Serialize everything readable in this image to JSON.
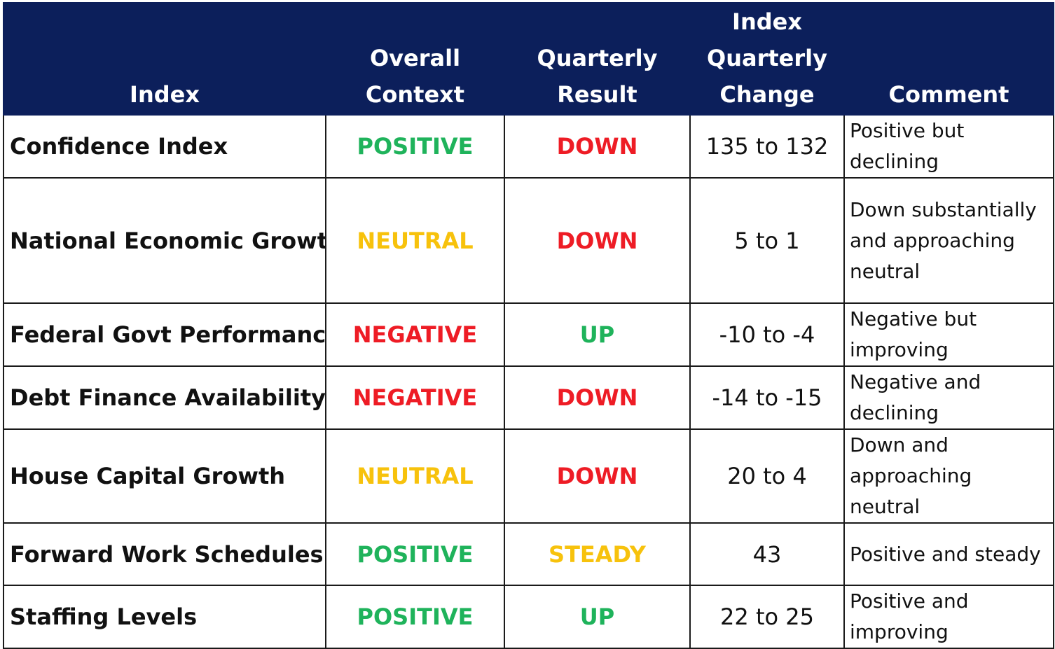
{
  "colors": {
    "header_background": "#0c1f5b",
    "header_text": "#ffffff",
    "positive": "#1fb35b",
    "neutral": "#f7c20c",
    "negative": "#ee1c25",
    "up": "#1fb35b",
    "down": "#ee1c25",
    "steady": "#f7c20c"
  },
  "table": {
    "headers": {
      "index": [
        "Index"
      ],
      "overall_context": [
        "Overall",
        "Context"
      ],
      "quarterly_result": [
        "Quarterly",
        "Result"
      ],
      "index_quarterly_change": [
        "Index",
        "Quarterly",
        "Change"
      ],
      "comment": [
        "Comment"
      ]
    },
    "rows": [
      {
        "index": "Confidence Index",
        "overall_context": "POSITIVE",
        "context_color": "#1fb35b",
        "quarterly_result": "DOWN",
        "result_color": "#ee1c25",
        "change": "135 to 132",
        "comment": [
          "Positive but",
          "declining"
        ]
      },
      {
        "index": "National Economic Growth",
        "overall_context": "NEUTRAL",
        "context_color": "#f7c20c",
        "quarterly_result": "DOWN",
        "result_color": "#ee1c25",
        "change": "5 to 1",
        "comment": [
          "Down substantially",
          "and approaching",
          "neutral"
        ]
      },
      {
        "index": "Federal Govt Performance",
        "overall_context": "NEGATIVE",
        "context_color": "#ee1c25",
        "quarterly_result": "UP",
        "result_color": "#1fb35b",
        "change": "-10 to -4",
        "comment": [
          "Negative but",
          "improving"
        ]
      },
      {
        "index": "Debt Finance Availability",
        "overall_context": "NEGATIVE",
        "context_color": "#ee1c25",
        "quarterly_result": "DOWN",
        "result_color": "#ee1c25",
        "change": "-14 to -15",
        "comment": [
          "Negative and",
          "declining"
        ]
      },
      {
        "index": "House Capital Growth",
        "overall_context": "NEUTRAL",
        "context_color": "#f7c20c",
        "quarterly_result": "DOWN",
        "result_color": "#ee1c25",
        "change": "20 to 4",
        "comment": [
          "Down and",
          "approaching",
          "neutral"
        ]
      },
      {
        "index": "Forward Work Schedules",
        "overall_context": "POSITIVE",
        "context_color": "#1fb35b",
        "quarterly_result": "STEADY",
        "result_color": "#f7c20c",
        "change": "43",
        "comment": [
          "Positive and steady"
        ]
      },
      {
        "index": "Staffing Levels",
        "overall_context": "POSITIVE",
        "context_color": "#1fb35b",
        "quarterly_result": "UP",
        "result_color": "#1fb35b",
        "change": "22 to 25",
        "comment": [
          "Positive and",
          "improving"
        ]
      }
    ]
  }
}
